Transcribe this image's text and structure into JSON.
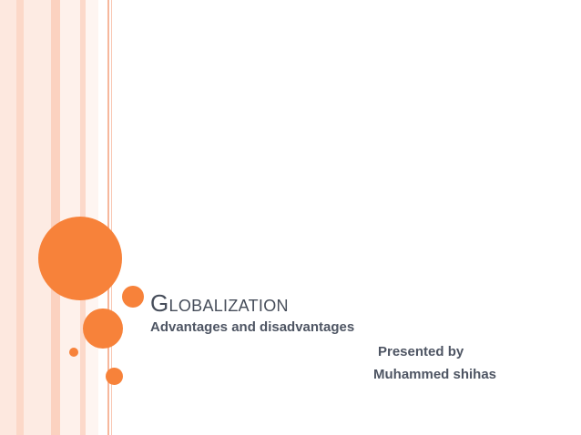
{
  "slide": {
    "title": "Globalization",
    "subtitle": "Advantages and disadvantages",
    "presented_by_label": "Presented by",
    "author": "Muhammed shihas"
  },
  "theme": {
    "accent": "#f7823a",
    "stripe_colors": [
      "#fde8df",
      "#fcd8c8",
      "#fbd2c0",
      "#f6b79c"
    ],
    "text_color": "#464d5a",
    "background": "#ffffff"
  }
}
